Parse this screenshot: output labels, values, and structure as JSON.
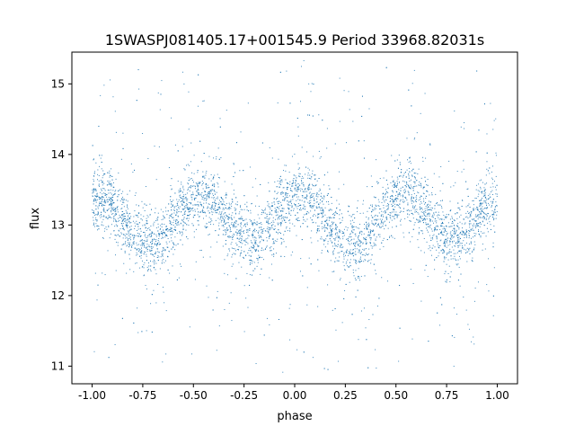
{
  "chart_data": {
    "type": "scatter",
    "title": "1SWASPJ081405.17+001545.9 Period 33968.82031s",
    "xlabel": "phase",
    "ylabel": "flux",
    "xlim": [
      -1.1,
      1.1
    ],
    "ylim": [
      10.75,
      15.45
    ],
    "x_ticks": [
      "-1.00",
      "-0.75",
      "-0.50",
      "-0.25",
      "0.00",
      "0.25",
      "0.50",
      "0.75",
      "1.00"
    ],
    "y_ticks": [
      "11",
      "12",
      "13",
      "14",
      "15"
    ],
    "grid": false,
    "marker_color": "#1f77b4",
    "series": [
      {
        "phase_samples": [
          -1.0,
          -0.95,
          -0.9,
          -0.85,
          -0.8,
          -0.75,
          -0.7,
          -0.65,
          -0.6,
          -0.55,
          -0.5,
          -0.45,
          -0.4,
          -0.35,
          -0.3,
          -0.25,
          -0.2,
          -0.15,
          -0.1,
          -0.05,
          0.0,
          0.05,
          0.1,
          0.15,
          0.2,
          0.25,
          0.3,
          0.35,
          0.4,
          0.45,
          0.5,
          0.55,
          0.6,
          0.65,
          0.7,
          0.75,
          0.8,
          0.85,
          0.9,
          0.95,
          1.0
        ],
        "mean_flux": [
          13.3,
          13.38,
          13.3,
          13.1,
          12.9,
          12.75,
          12.72,
          12.85,
          13.05,
          13.25,
          13.35,
          13.42,
          13.35,
          13.15,
          12.95,
          12.82,
          12.78,
          12.9,
          13.1,
          13.3,
          13.38,
          13.42,
          13.3,
          13.1,
          12.9,
          12.75,
          12.72,
          12.85,
          13.05,
          13.25,
          13.35,
          13.42,
          13.35,
          13.15,
          12.95,
          12.82,
          12.78,
          12.9,
          13.1,
          13.3,
          13.38
        ],
        "band_scatter": 0.22,
        "outlier_range": [
          10.9,
          15.3
        ]
      }
    ]
  }
}
